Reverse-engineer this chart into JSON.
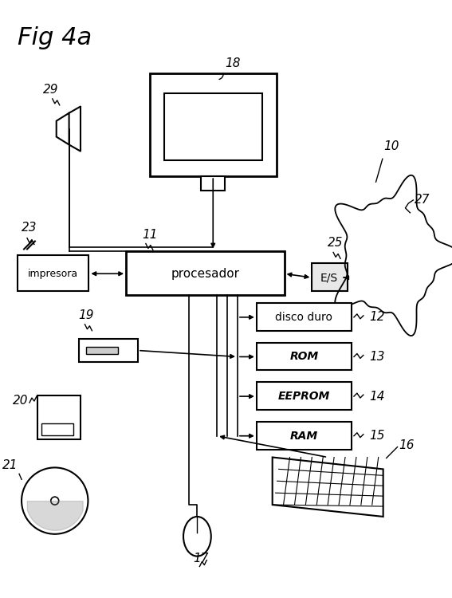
{
  "title": "Fig 4a",
  "bg_color": "#ffffff",
  "line_color": "#000000",
  "box_fill": "#ffffff",
  "labels": {
    "title": "Fig 4a",
    "procesador": "procesador",
    "impresora": "impresora",
    "disco_duro": "disco duro",
    "rom": "ROM",
    "eeprom": "EEPROM",
    "ram": "RAM",
    "es": "E/S",
    "n10": "10",
    "n11": "11",
    "n12": "12",
    "n13": "13",
    "n14": "14",
    "n15": "15",
    "n16": "16",
    "n17": "17",
    "n18": "18",
    "n19": "19",
    "n20": "20",
    "n21": "21",
    "n23": "23",
    "n25": "25",
    "n27": "27",
    "n29": "29"
  }
}
